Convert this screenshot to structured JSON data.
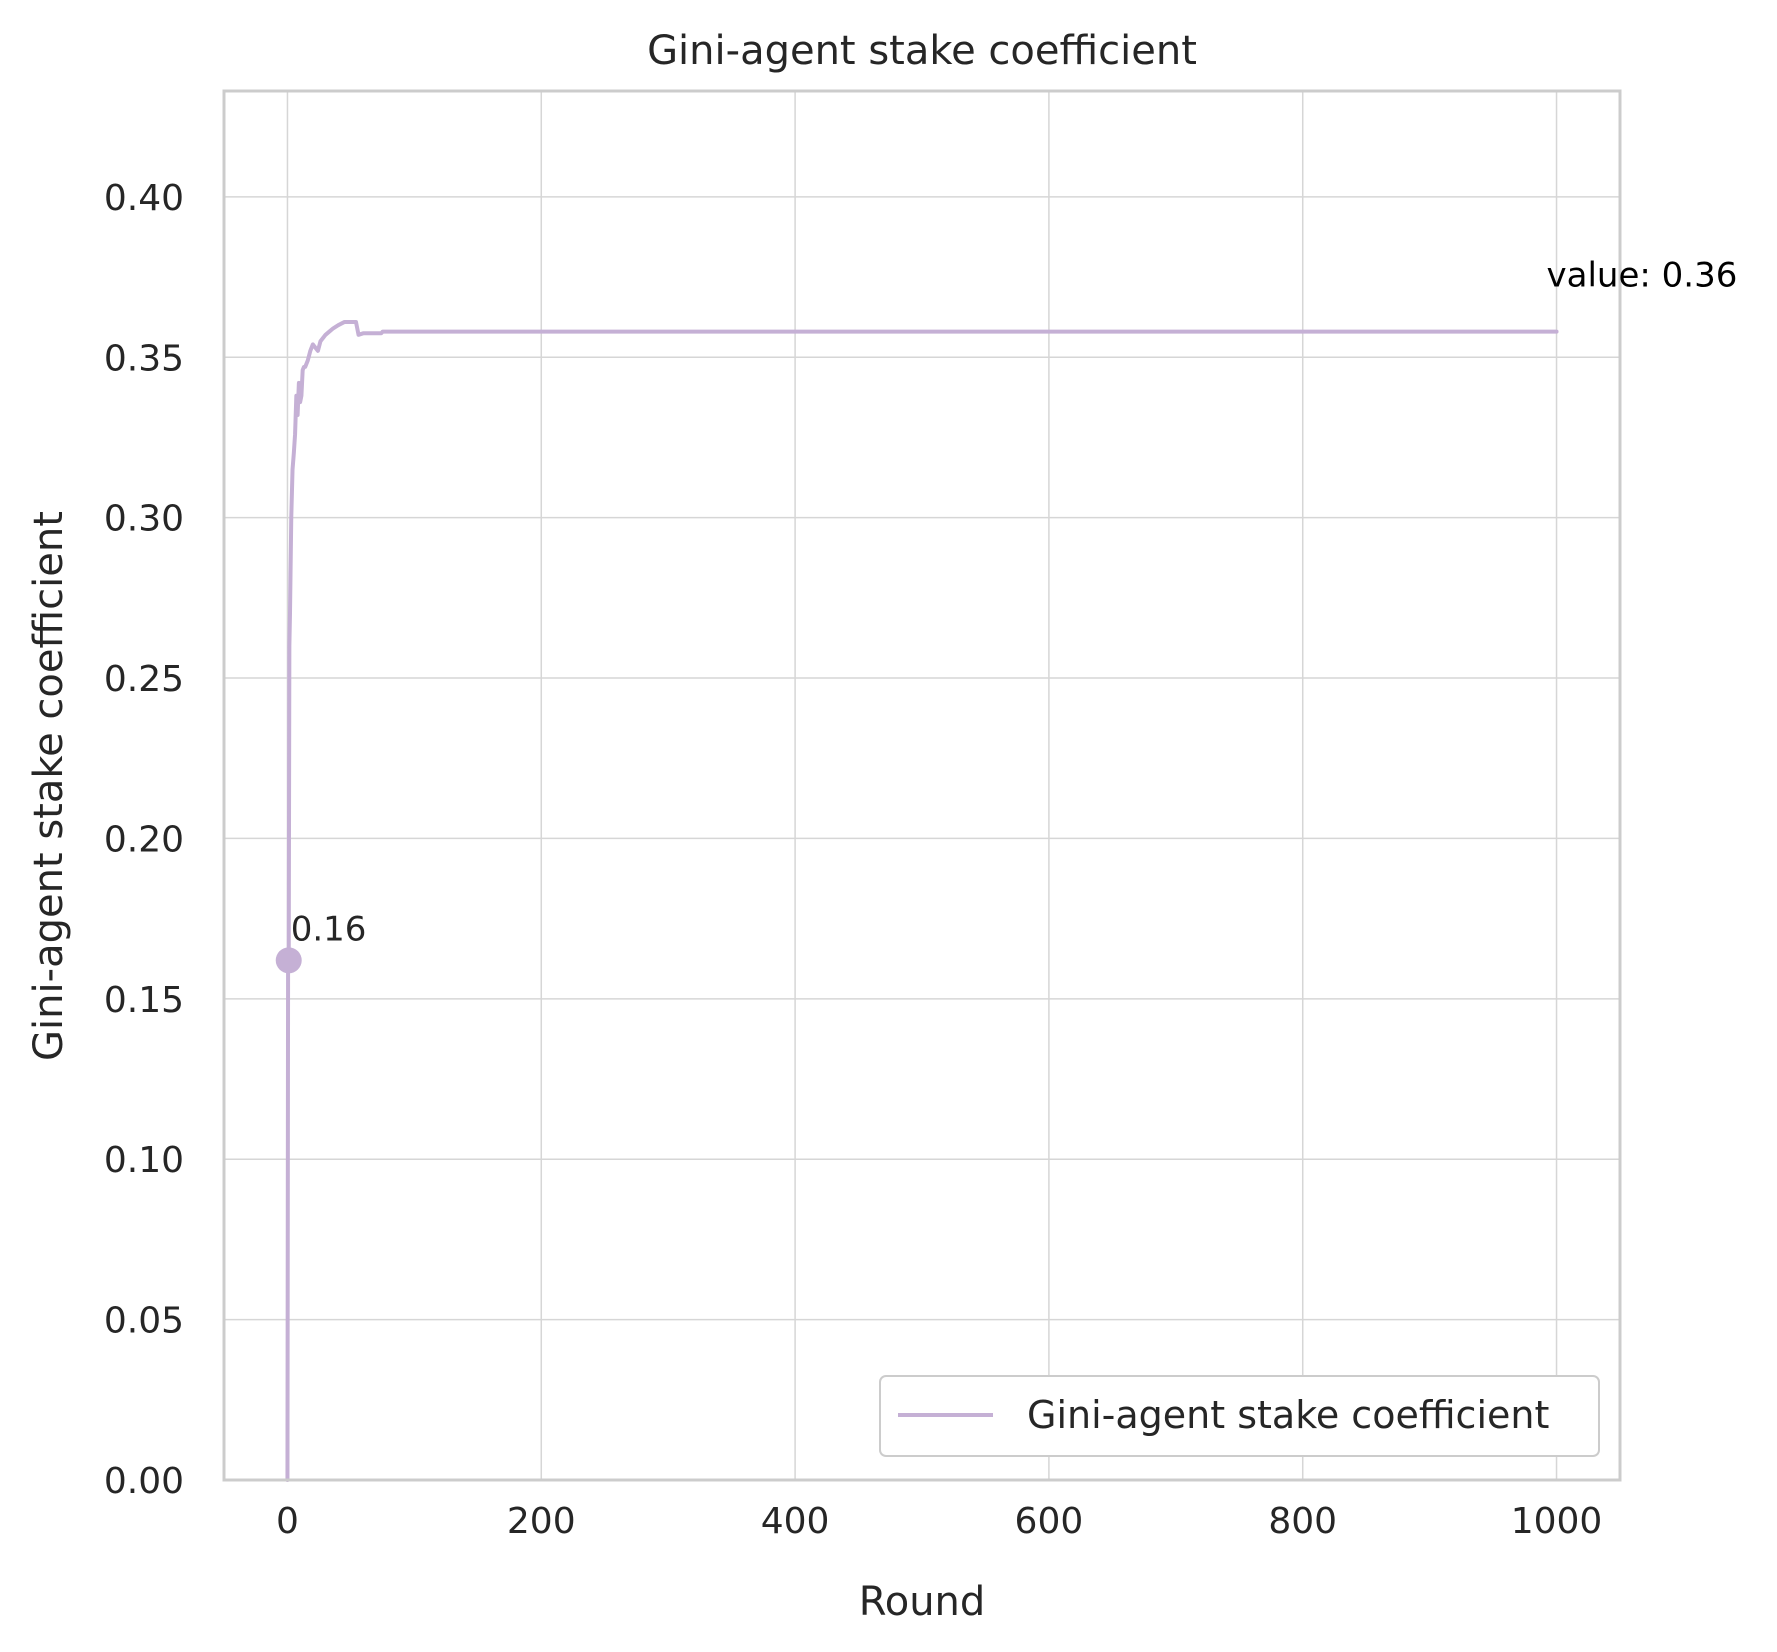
{
  "chart_data": {
    "type": "line",
    "title": "Gini-agent stake coefficient",
    "xlabel": "Round",
    "ylabel": "Gini-agent stake coefficient",
    "xlim": [
      -50,
      1050
    ],
    "ylim": [
      0,
      0.433
    ],
    "xticks": [
      0,
      200,
      400,
      600,
      800,
      1000
    ],
    "yticks": [
      0.0,
      0.05,
      0.1,
      0.15,
      0.2,
      0.25,
      0.3,
      0.35,
      0.4
    ],
    "xtick_labels": [
      "0",
      "200",
      "400",
      "600",
      "800",
      "1000"
    ],
    "ytick_labels": [
      "0.00",
      "0.05",
      "0.10",
      "0.15",
      "0.20",
      "0.25",
      "0.30",
      "0.35",
      "0.40"
    ],
    "grid": true,
    "legend_position": "lower right",
    "series": [
      {
        "name": "Gini-agent stake coefficient",
        "color": "#c5b0d5",
        "x": [
          0,
          0.5,
          1,
          1.5,
          2,
          3,
          4,
          5,
          6,
          7,
          8,
          9,
          10,
          11,
          12,
          13,
          14,
          16,
          18,
          20,
          22,
          24,
          26,
          28,
          30,
          33,
          36,
          40,
          45,
          50,
          54,
          56,
          60,
          65,
          70,
          74,
          75,
          80,
          100,
          200,
          400,
          600,
          800,
          1000
        ],
        "y": [
          0.0,
          0.162,
          0.16,
          0.26,
          0.27,
          0.3,
          0.315,
          0.32,
          0.326,
          0.338,
          0.332,
          0.342,
          0.336,
          0.338,
          0.346,
          0.347,
          0.347,
          0.349,
          0.352,
          0.354,
          0.353,
          0.352,
          0.355,
          0.356,
          0.357,
          0.358,
          0.359,
          0.36,
          0.361,
          0.361,
          0.361,
          0.357,
          0.3575,
          0.3575,
          0.3575,
          0.3575,
          0.358,
          0.358,
          0.358,
          0.358,
          0.358,
          0.358,
          0.358,
          0.358
        ]
      }
    ],
    "annotations": {
      "start_label": "0.16",
      "start_point": {
        "x": 1,
        "y": 0.162
      },
      "end_label": "value: 0.36"
    }
  }
}
